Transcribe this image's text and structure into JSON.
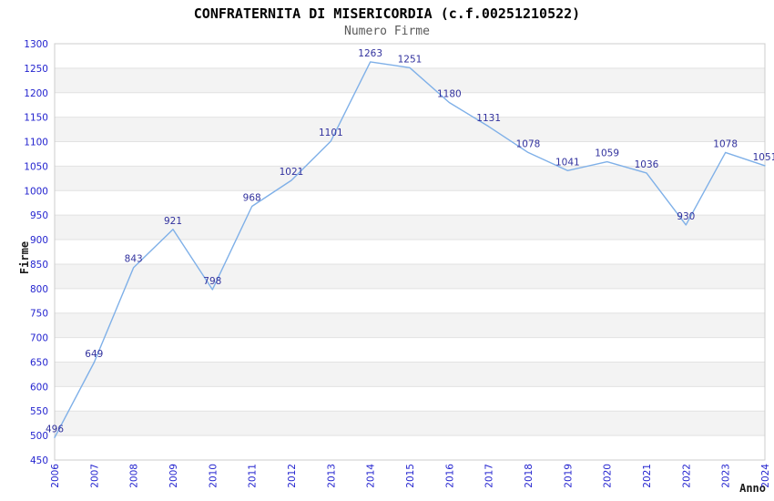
{
  "chart_data": {
    "type": "line",
    "title": "CONFRATERNITA DI MISERICORDIA (c.f.00251210522)",
    "subtitle": "Numero Firme",
    "xlabel": "Anno",
    "ylabel": "Firme",
    "x": [
      2006,
      2007,
      2008,
      2009,
      2010,
      2011,
      2012,
      2013,
      2014,
      2015,
      2016,
      2017,
      2018,
      2019,
      2020,
      2021,
      2022,
      2023,
      2024
    ],
    "series": [
      {
        "name": "Numero Firme",
        "values": [
          496,
          649,
          843,
          921,
          798,
          968,
          1021,
          1101,
          1263,
          1251,
          1180,
          1131,
          1078,
          1041,
          1059,
          1036,
          930,
          1078,
          1051
        ]
      }
    ],
    "ylim": [
      450,
      1300
    ],
    "ytick_step": 50,
    "grid": "horizontal-only",
    "banded_background": true,
    "legend_position": "none",
    "data_labels_visible": true,
    "colors": {
      "line": "#7fb0e8",
      "tick_label": "#2424cf",
      "data_label": "#32329e",
      "band_gray": "#f3f3f3",
      "band_white": "#ffffff",
      "gridline": "#e2e2e2",
      "plot_border": "#cccccc",
      "title": "#000000",
      "subtitle": "#595959",
      "axis_name": "#1a1a1a"
    }
  }
}
